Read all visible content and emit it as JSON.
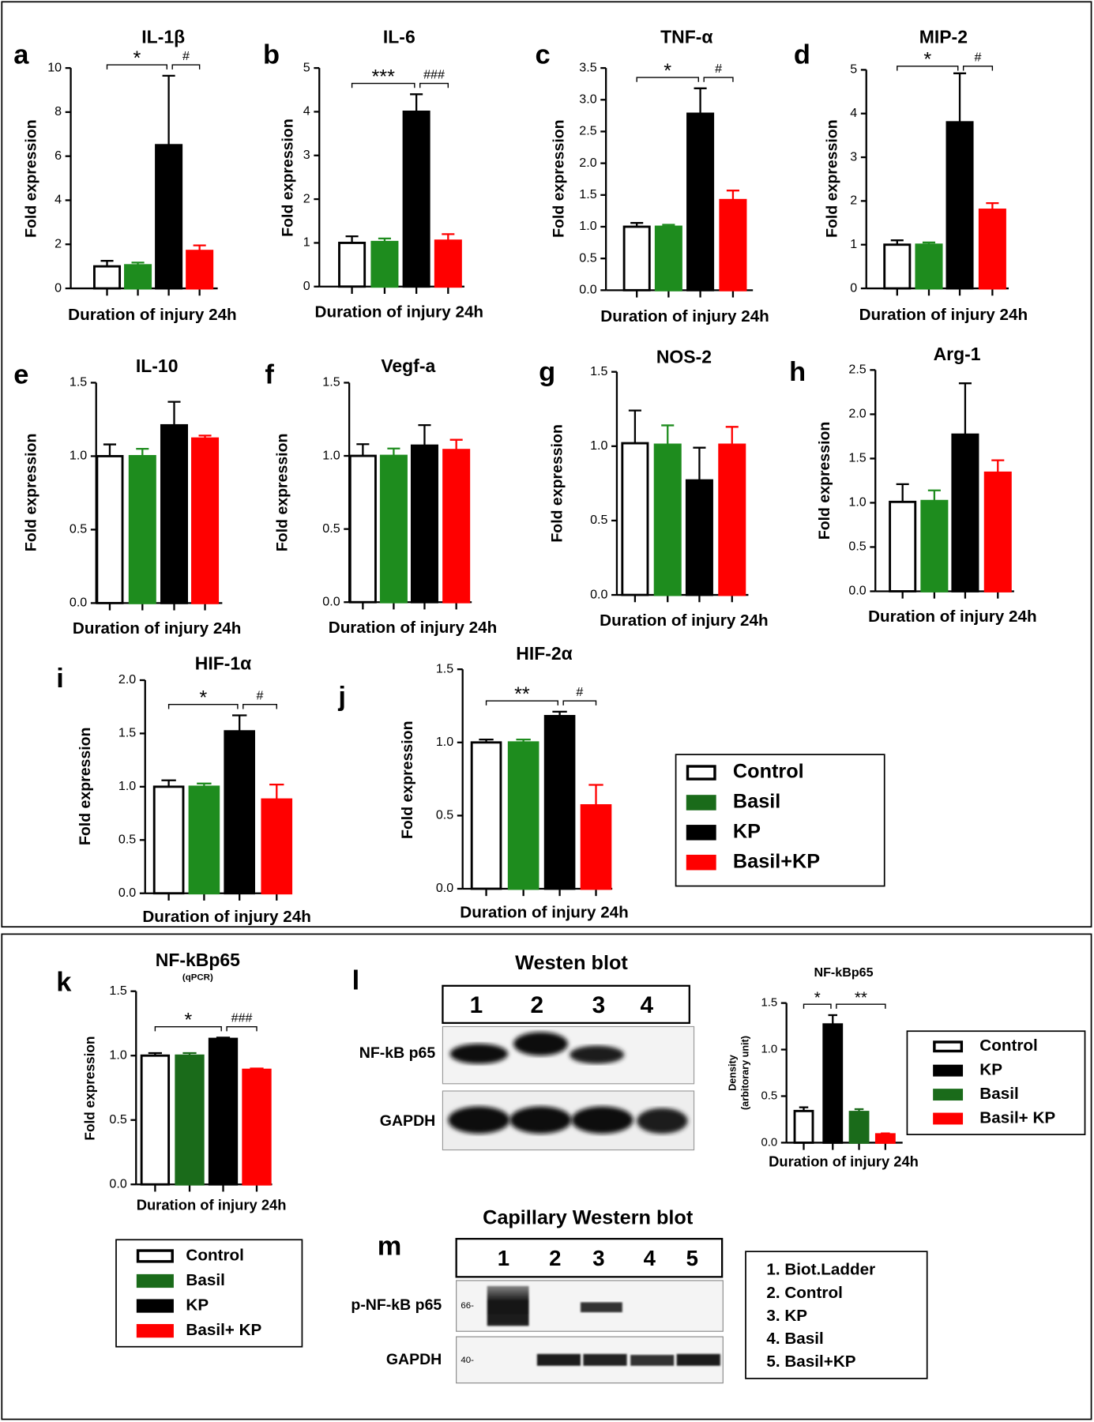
{
  "chart_data": [
    {
      "type": "bar",
      "panel": "a",
      "title": "IL-1β",
      "ylabel": "Fold expression",
      "xlabel": "Duration of injury 24h",
      "categories": [
        null,
        null,
        null,
        null
      ],
      "values": [
        1.0,
        1.05,
        6.5,
        1.7
      ],
      "errors": [
        0.25,
        0.12,
        3.15,
        0.25
      ],
      "colors": [
        "#ffffff",
        "#1e8c1e",
        "#000000",
        "#ff0000"
      ],
      "edgecolors": [
        "#000000",
        "#1e8c1e",
        "#000000",
        "#ff0000"
      ],
      "ylim": [
        0,
        10
      ],
      "yticks": [
        0,
        2,
        4,
        6,
        8,
        10
      ],
      "annotations": [
        {
          "text": "*",
          "from": 0,
          "to": 2
        },
        {
          "text": "#",
          "from": 2,
          "to": 3
        }
      ]
    },
    {
      "type": "bar",
      "panel": "b",
      "title": "IL-6",
      "ylabel": "Fold expression",
      "xlabel": "Duration of injury 24h",
      "categories": [
        null,
        null,
        null,
        null
      ],
      "values": [
        1.0,
        1.02,
        4.0,
        1.05
      ],
      "errors": [
        0.15,
        0.08,
        0.4,
        0.15
      ],
      "colors": [
        "#ffffff",
        "#1e8c1e",
        "#000000",
        "#ff0000"
      ],
      "edgecolors": [
        "#000000",
        "#1e8c1e",
        "#000000",
        "#ff0000"
      ],
      "ylim": [
        0,
        5
      ],
      "yticks": [
        0,
        1,
        2,
        3,
        4,
        5
      ],
      "annotations": [
        {
          "text": "***",
          "from": 0,
          "to": 2
        },
        {
          "text": "###",
          "from": 2,
          "to": 3
        }
      ]
    },
    {
      "type": "bar",
      "panel": "c",
      "title": "TNF-α",
      "ylabel": "Fold expression",
      "xlabel": "Duration of injury 24h",
      "categories": [
        null,
        null,
        null,
        null
      ],
      "values": [
        1.0,
        1.0,
        2.78,
        1.42
      ],
      "errors": [
        0.06,
        0.03,
        0.4,
        0.15
      ],
      "colors": [
        "#ffffff",
        "#1e8c1e",
        "#000000",
        "#ff0000"
      ],
      "edgecolors": [
        "#000000",
        "#1e8c1e",
        "#000000",
        "#ff0000"
      ],
      "ylim": [
        0,
        3.5
      ],
      "yticks": [
        {
          "value": 0,
          "label": "0.0"
        },
        0.5,
        {
          "value": 1,
          "label": "1.0"
        },
        1.5,
        {
          "value": 2,
          "label": "2.0"
        },
        2.5,
        {
          "value": 3,
          "label": "3.0"
        },
        3.5
      ],
      "annotations": [
        {
          "text": "*",
          "from": 0,
          "to": 2
        },
        {
          "text": "#",
          "from": 2,
          "to": 3
        }
      ]
    },
    {
      "type": "bar",
      "panel": "d",
      "title": "MIP-2",
      "ylabel": "Fold expression",
      "xlabel": "Duration of injury 24h",
      "categories": [
        null,
        null,
        null,
        null
      ],
      "values": [
        1.0,
        1.0,
        3.8,
        1.8
      ],
      "errors": [
        0.1,
        0.05,
        1.12,
        0.15
      ],
      "colors": [
        "#ffffff",
        "#1e8c1e",
        "#000000",
        "#ff0000"
      ],
      "edgecolors": [
        "#000000",
        "#1e8c1e",
        "#000000",
        "#ff0000"
      ],
      "ylim": [
        0,
        5
      ],
      "yticks": [
        0,
        1,
        2,
        3,
        4,
        5
      ],
      "annotations": [
        {
          "text": "*",
          "from": 0,
          "to": 2
        },
        {
          "text": "#",
          "from": 2,
          "to": 3
        }
      ]
    },
    {
      "type": "bar",
      "panel": "e",
      "title": "IL-10",
      "ylabel": "Fold expression",
      "xlabel": "Duration of injury 24h",
      "categories": [
        null,
        null,
        null,
        null
      ],
      "values": [
        1.0,
        1.0,
        1.21,
        1.12
      ],
      "errors": [
        0.08,
        0.05,
        0.16,
        0.02
      ],
      "colors": [
        "#ffffff",
        "#1e8c1e",
        "#000000",
        "#ff0000"
      ],
      "edgecolors": [
        "#000000",
        "#1e8c1e",
        "#000000",
        "#ff0000"
      ],
      "ylim": [
        0,
        1.5
      ],
      "yticks": [
        {
          "value": 0,
          "label": "0.0"
        },
        0.5,
        {
          "value": 1,
          "label": "1.0"
        },
        1.5
      ]
    },
    {
      "type": "bar",
      "panel": "f",
      "title": "Vegf-a",
      "ylabel": "Fold expression",
      "xlabel": "Duration of injury 24h",
      "categories": [
        null,
        null,
        null,
        null
      ],
      "values": [
        1.0,
        1.0,
        1.07,
        1.04
      ],
      "errors": [
        0.08,
        0.05,
        0.14,
        0.07
      ],
      "colors": [
        "#ffffff",
        "#1e8c1e",
        "#000000",
        "#ff0000"
      ],
      "edgecolors": [
        "#000000",
        "#1e8c1e",
        "#000000",
        "#ff0000"
      ],
      "ylim": [
        0,
        1.5
      ],
      "yticks": [
        {
          "value": 0,
          "label": "0.0"
        },
        0.5,
        {
          "value": 1,
          "label": "1.0"
        },
        1.5
      ]
    },
    {
      "type": "bar",
      "panel": "g",
      "title": "NOS-2",
      "ylabel": "Fold expression",
      "xlabel": "Duration of injury 24h",
      "categories": [
        null,
        null,
        null,
        null
      ],
      "values": [
        1.02,
        1.01,
        0.77,
        1.01
      ],
      "errors": [
        0.22,
        0.13,
        0.22,
        0.12
      ],
      "colors": [
        "#ffffff",
        "#1e8c1e",
        "#000000",
        "#ff0000"
      ],
      "edgecolors": [
        "#000000",
        "#1e8c1e",
        "#000000",
        "#ff0000"
      ],
      "ylim": [
        0,
        1.5
      ],
      "yticks": [
        {
          "value": 0,
          "label": "0.0"
        },
        0.5,
        {
          "value": 1,
          "label": "1.0"
        },
        1.5
      ]
    },
    {
      "type": "bar",
      "panel": "h",
      "title": "Arg-1",
      "ylabel": "Fold expression",
      "xlabel": "Duration of injury 24h",
      "categories": [
        null,
        null,
        null,
        null
      ],
      "values": [
        1.01,
        1.02,
        1.77,
        1.34
      ],
      "errors": [
        0.2,
        0.12,
        0.58,
        0.14
      ],
      "colors": [
        "#ffffff",
        "#1e8c1e",
        "#000000",
        "#ff0000"
      ],
      "edgecolors": [
        "#000000",
        "#1e8c1e",
        "#000000",
        "#ff0000"
      ],
      "ylim": [
        0,
        2.5
      ],
      "yticks": [
        {
          "value": 0,
          "label": "0.0"
        },
        0.5,
        {
          "value": 1,
          "label": "1.0"
        },
        1.5,
        {
          "value": 2,
          "label": "2.0"
        },
        2.5
      ]
    },
    {
      "type": "bar",
      "panel": "i",
      "title": "HIF-1α",
      "ylabel": "Fold expression",
      "xlabel": "Duration of injury 24h",
      "categories": [
        null,
        null,
        null,
        null
      ],
      "values": [
        1.0,
        1.0,
        1.52,
        0.88
      ],
      "errors": [
        0.06,
        0.03,
        0.15,
        0.14
      ],
      "colors": [
        "#ffffff",
        "#1e8c1e",
        "#000000",
        "#ff0000"
      ],
      "edgecolors": [
        "#000000",
        "#1e8c1e",
        "#000000",
        "#ff0000"
      ],
      "ylim": [
        0,
        2
      ],
      "yticks": [
        {
          "value": 0,
          "label": "0.0"
        },
        0.5,
        {
          "value": 1,
          "label": "1.0"
        },
        1.5,
        {
          "value": 2,
          "label": "2.0"
        }
      ],
      "annotations": [
        {
          "text": "*",
          "from": 0,
          "to": 2
        },
        {
          "text": "#",
          "from": 2,
          "to": 3
        }
      ]
    },
    {
      "type": "bar",
      "panel": "j",
      "title": "HIF-2α",
      "ylabel": "Fold expression",
      "xlabel": "Duration of injury 24h",
      "categories": [
        null,
        null,
        null,
        null
      ],
      "values": [
        1.0,
        1.0,
        1.18,
        0.57
      ],
      "errors": [
        0.02,
        0.02,
        0.03,
        0.14
      ],
      "colors": [
        "#ffffff",
        "#1e8c1e",
        "#000000",
        "#ff0000"
      ],
      "edgecolors": [
        "#000000",
        "#1e8c1e",
        "#000000",
        "#ff0000"
      ],
      "ylim": [
        0,
        1.5
      ],
      "yticks": [
        {
          "value": 0,
          "label": "0.0"
        },
        0.5,
        {
          "value": 1,
          "label": "1.0"
        },
        1.5
      ],
      "annotations": [
        {
          "text": "**",
          "from": 0,
          "to": 2
        },
        {
          "text": "#",
          "from": 2,
          "to": 3
        }
      ]
    },
    {
      "type": "bar",
      "panel": "k",
      "title": "NF-kBp65",
      "subtitle": "(qPCR)",
      "ylabel": "Fold expression",
      "xlabel": "Duration of injury 24h",
      "categories": [
        null,
        null,
        null,
        null
      ],
      "values": [
        1.0,
        1.0,
        1.13,
        0.89
      ],
      "errors": [
        0.02,
        0.02,
        0.01,
        0.01
      ],
      "colors": [
        "#ffffff",
        "#1a6b1a",
        "#000000",
        "#ff0000"
      ],
      "edgecolors": [
        "#000000",
        "#1a6b1a",
        "#000000",
        "#ff0000"
      ],
      "ylim": [
        0,
        1.5
      ],
      "yticks": [
        {
          "value": 0,
          "label": "0.0"
        },
        0.5,
        {
          "value": 1,
          "label": "1.0"
        },
        1.5
      ],
      "annotations": [
        {
          "text": "*",
          "from": 0,
          "to": 2
        },
        {
          "text": "###",
          "from": 2,
          "to": 3
        }
      ]
    },
    {
      "type": "bar",
      "title": "NF-kBp65",
      "ylabel": [
        "Density",
        "(arbitorary unit)"
      ],
      "xlabel": "Duration of injury 24h",
      "categories": [
        null,
        null,
        null,
        null
      ],
      "values": [
        0.34,
        1.27,
        0.33,
        0.09
      ],
      "errors": [
        0.04,
        0.1,
        0.03,
        0.01
      ],
      "colors": [
        "#ffffff",
        "#000000",
        "#1a6b1a",
        "#ff0000"
      ],
      "edgecolors": [
        "#000000",
        "#000000",
        "#1a6b1a",
        "#ff0000"
      ],
      "ylim": [
        0,
        1.5
      ],
      "yticks": [
        {
          "value": 0,
          "label": "0.0"
        },
        0.5,
        {
          "value": 1,
          "label": "1.0"
        },
        1.5
      ],
      "annotations": [
        {
          "text": "*",
          "from": 0,
          "to": 1
        },
        {
          "text": "**",
          "from": 1,
          "to": 3
        }
      ]
    }
  ],
  "legends": [
    {
      "entries": [
        {
          "name": "Control",
          "color": "#ffffff",
          "edgecolor": "#000000"
        },
        {
          "name": "Basil",
          "color": "#1a6b1a",
          "edgecolor": "#1a6b1a"
        },
        {
          "name": "KP",
          "color": "#000000",
          "edgecolor": "#000000"
        },
        {
          "name": "Basil+KP",
          "color": "#ff0000",
          "edgecolor": "#ff0000"
        }
      ]
    },
    {
      "entries": [
        {
          "name": "Control",
          "color": "#ffffff",
          "edgecolor": "#000000"
        },
        {
          "name": "KP",
          "color": "#000000",
          "edgecolor": "#000000"
        },
        {
          "name": "Basil",
          "color": "#1a6b1a",
          "edgecolor": "#1a6b1a"
        },
        {
          "name": "Basil+ KP",
          "color": "#ff0000",
          "edgecolor": "#ff0000"
        }
      ]
    },
    {
      "entries": [
        {
          "name": "Control",
          "color": "#ffffff",
          "edgecolor": "#000000"
        },
        {
          "name": "Basil",
          "color": "#1a6b1a",
          "edgecolor": "#1a6b1a"
        },
        {
          "name": "KP",
          "color": "#000000",
          "edgecolor": "#000000"
        },
        {
          "name": "Basil+ KP",
          "color": "#ff0000",
          "edgecolor": "#ff0000"
        }
      ]
    }
  ],
  "western_blot": {
    "panel": "l",
    "title": "Westen blot",
    "lanes": [
      "1",
      "2",
      "3",
      "4"
    ],
    "rows": [
      "NF-kB p65",
      "GAPDH"
    ]
  },
  "capillary_western_blot": {
    "panel": "m",
    "title": "Capillary Western blot",
    "lanes": [
      "1",
      "2",
      "3",
      "4",
      "5"
    ],
    "rows": [
      "p-NF-kB p65",
      "GAPDH"
    ],
    "markers": [
      "66-",
      "40-"
    ],
    "key": [
      "1. Biot.Ladder",
      "2. Control",
      "3. KP",
      "4. Basil",
      "5. Basil+KP"
    ]
  }
}
